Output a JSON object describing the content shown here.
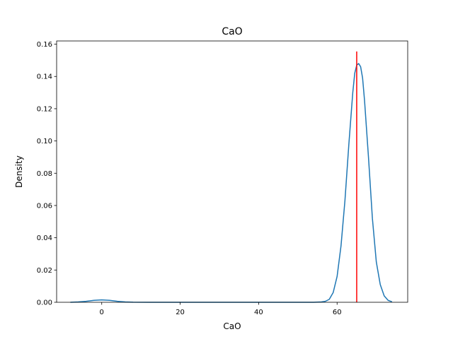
{
  "chart_data": {
    "type": "line",
    "title": "CaO",
    "xlabel": "CaO",
    "ylabel": "Density",
    "xlim": [
      -11.5,
      78
    ],
    "ylim": [
      0,
      0.162
    ],
    "x_ticks": [
      0,
      20,
      40,
      60
    ],
    "y_ticks": [
      0.0,
      0.02,
      0.04,
      0.06,
      0.08,
      0.1,
      0.12,
      0.14,
      0.16
    ],
    "y_tick_labels": [
      "0.00",
      "0.02",
      "0.04",
      "0.06",
      "0.08",
      "0.10",
      "0.12",
      "0.14",
      "0.16"
    ],
    "grid": false,
    "legend": "none",
    "series": [
      {
        "color": "#1f77b4",
        "points": [
          [
            -8,
            0.0
          ],
          [
            -6,
            0.0002
          ],
          [
            -4,
            0.0006
          ],
          [
            -2,
            0.0012
          ],
          [
            0,
            0.0015
          ],
          [
            2,
            0.0012
          ],
          [
            4,
            0.0006
          ],
          [
            6,
            0.0002
          ],
          [
            8,
            5e-05
          ],
          [
            12,
            0.0
          ],
          [
            30,
            0.0
          ],
          [
            50,
            0.0
          ],
          [
            54,
            0.0
          ],
          [
            56,
            0.0002
          ],
          [
            57,
            0.0006
          ],
          [
            58,
            0.0018
          ],
          [
            59,
            0.006
          ],
          [
            60,
            0.016
          ],
          [
            61,
            0.035
          ],
          [
            62,
            0.063
          ],
          [
            63,
            0.098
          ],
          [
            64,
            0.13
          ],
          [
            64.5,
            0.142
          ],
          [
            65,
            0.147
          ],
          [
            65.5,
            0.148
          ],
          [
            66,
            0.146
          ],
          [
            66.5,
            0.139
          ],
          [
            67,
            0.125
          ],
          [
            68,
            0.09
          ],
          [
            69,
            0.052
          ],
          [
            70,
            0.025
          ],
          [
            71,
            0.011
          ],
          [
            72,
            0.004
          ],
          [
            73,
            0.0012
          ],
          [
            74,
            0.0003
          ]
        ]
      }
    ],
    "vline": {
      "x": 65,
      "y_top": 0.1555,
      "color": "#ff0000"
    }
  }
}
